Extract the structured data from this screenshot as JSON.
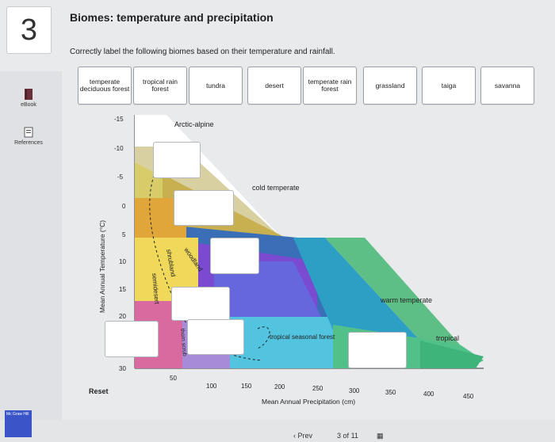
{
  "question": {
    "number": "3",
    "title": "Biomes: temperature and precipitation",
    "instruction": "Correctly label the following biomes based on their temperature and rainfall."
  },
  "sidebar": {
    "ebook": "eBook",
    "references": "References"
  },
  "labels": [
    "temperate deciduous forest",
    "tropical rain forest",
    "tundra",
    "desert",
    "temperate rain forest",
    "grassland",
    "taiga",
    "savanna"
  ],
  "chart": {
    "ylabel": "Mean Annual Temperature (°C)",
    "xlabel": "Mean Annual Precipitation (cm)",
    "yticks": [
      "-15",
      "-10",
      "-5",
      "0",
      "5",
      "10",
      "15",
      "20",
      "30"
    ],
    "xticks": [
      "50",
      "100",
      "150",
      "200",
      "250",
      "300",
      "350",
      "400",
      "450"
    ],
    "zones": [
      "Arctic-alpine",
      "cold temperate",
      "warm temperate",
      "tropical"
    ],
    "region_labels": [
      "woodland",
      "shrubland",
      "semidesert",
      "thorn scrub",
      "tropical seasonal forest"
    ]
  },
  "reset": "Reset",
  "nav": {
    "prev": "Prev",
    "page": "3",
    "of": "of",
    "total": "11"
  },
  "publisher": "Mc Graw Hill"
}
